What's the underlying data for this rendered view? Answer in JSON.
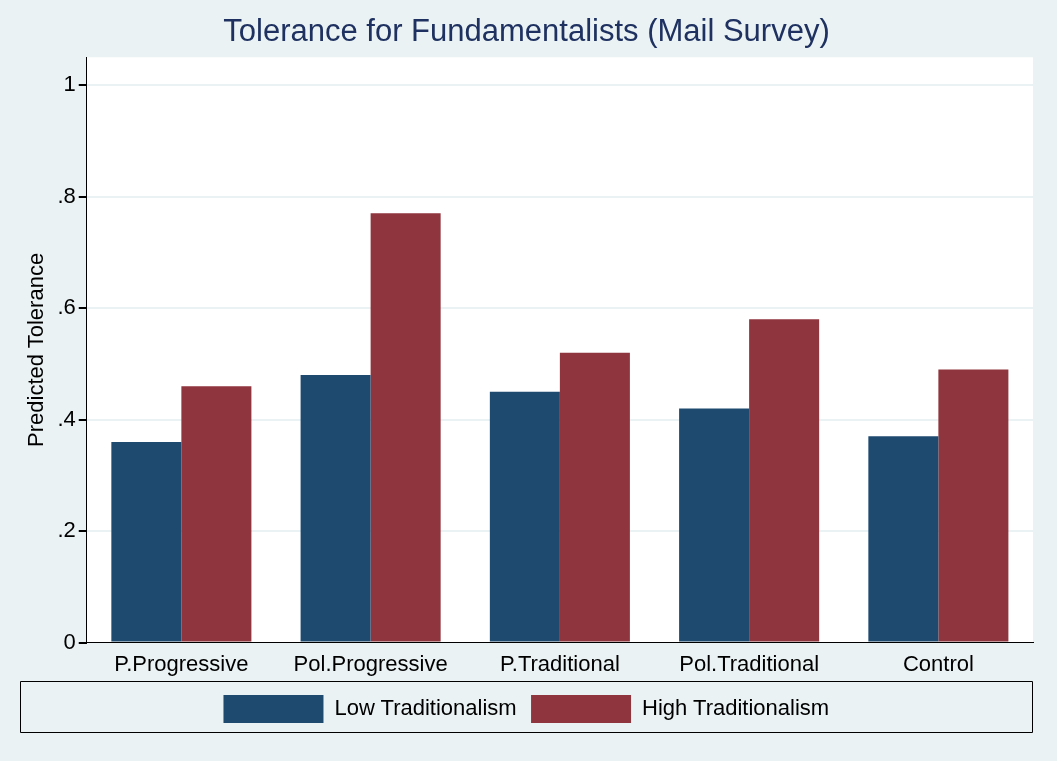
{
  "chart_data": {
    "type": "bar",
    "title": "Tolerance for Fundamentalists (Mail Survey)",
    "ylabel": "Predicted Tolerance",
    "categories": [
      "P.Progressive",
      "Pol.Progressive",
      "P.Traditional",
      "Pol.Traditional",
      "Control"
    ],
    "series": [
      {
        "name": "Low Traditionalism",
        "color": "#1f4a70",
        "values": [
          0.36,
          0.48,
          0.45,
          0.42,
          0.37
        ]
      },
      {
        "name": "High Traditionalism",
        "color": "#8f353d",
        "values": [
          0.46,
          0.77,
          0.52,
          0.58,
          0.49
        ]
      }
    ],
    "ylim": [
      0,
      1.05
    ],
    "yticks": [
      0,
      {
        "value": 0.2,
        "label": ".2"
      },
      {
        "value": 0.4,
        "label": ".4"
      },
      {
        "value": 0.6,
        "label": ".6"
      },
      {
        "value": 0.8,
        "label": ".8"
      },
      1
    ],
    "grid": "y",
    "legend": "bottom"
  }
}
